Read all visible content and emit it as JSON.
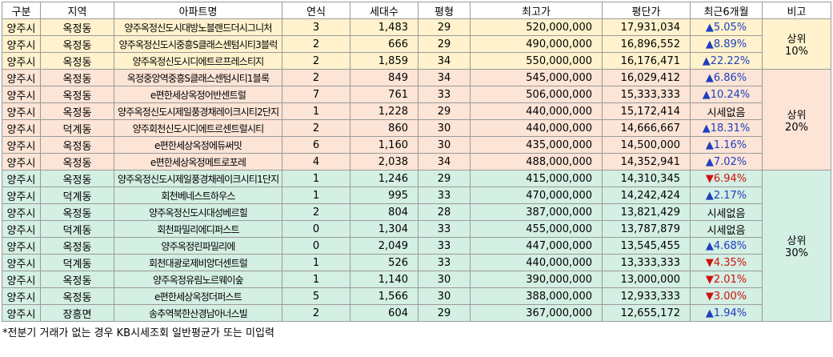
{
  "table": {
    "headers": [
      "구분",
      "지역",
      "아파트명",
      "연식",
      "세대수",
      "평형",
      "최고가",
      "평단가",
      "최근6개월",
      "비고"
    ],
    "rows": [
      [
        "양주시",
        "옥정동",
        "양주옥정신도시대방노블랜드더시그니처",
        "3",
        "1,483",
        "29",
        "520,000,000",
        "17,931,034",
        "▲5.05%"
      ],
      [
        "양주시",
        "옥정동",
        "양주옥정신도시중흥S클래스센텀시티3블럭",
        "2",
        "666",
        "29",
        "490,000,000",
        "16,896,552",
        "▲8.89%"
      ],
      [
        "양주시",
        "옥정동",
        "양주옥정신도시디에트르프레스티지",
        "2",
        "1,859",
        "34",
        "550,000,000",
        "16,176,471",
        "▲22.22%"
      ],
      [
        "양주시",
        "옥정동",
        "옥정중앙역중흥S클래스센텀시티1블록",
        "2",
        "849",
        "34",
        "545,000,000",
        "16,029,412",
        "▲6.86%"
      ],
      [
        "양주시",
        "옥정동",
        "e편한세상옥정어반센트럴",
        "7",
        "761",
        "33",
        "506,000,000",
        "15,333,333",
        "▲10.24%"
      ],
      [
        "양주시",
        "옥정동",
        "양주옥정신도시제일풍경채레이크시티2단지",
        "1",
        "1,228",
        "29",
        "440,000,000",
        "15,172,414",
        "시세없음"
      ],
      [
        "양주시",
        "덕계동",
        "양주회천신도시디에트르센트럴시티",
        "2",
        "860",
        "30",
        "440,000,000",
        "14,666,667",
        "▲18.31%"
      ],
      [
        "양주시",
        "옥정동",
        "e편한세상옥정에듀써밋",
        "6",
        "1,160",
        "30",
        "435,000,000",
        "14,500,000",
        "▲1.16%"
      ],
      [
        "양주시",
        "옥정동",
        "e편한세상옥정메트로포레",
        "4",
        "2,038",
        "34",
        "488,000,000",
        "14,352,941",
        "▲7.02%"
      ],
      [
        "양주시",
        "옥정동",
        "양주옥정신도시제일풍경채레이크시티1단지",
        "1",
        "1,246",
        "29",
        "415,000,000",
        "14,310,345",
        "▼6.94%"
      ],
      [
        "양주시",
        "덕계동",
        "회천베네스트하우스",
        "1",
        "995",
        "33",
        "470,000,000",
        "14,242,424",
        "▲2.17%"
      ],
      [
        "양주시",
        "옥정동",
        "양주옥정신도시대성베르힐",
        "2",
        "804",
        "28",
        "387,000,000",
        "13,821,429",
        "시세없음"
      ],
      [
        "양주시",
        "덕계동",
        "회천파밀리에디퍼스트",
        "0",
        "1,304",
        "33",
        "455,000,000",
        "13,787,879",
        "시세없음"
      ],
      [
        "양주시",
        "옥정동",
        "양주옥정린파밀리에",
        "0",
        "2,049",
        "33",
        "447,000,000",
        "13,545,455",
        "▲4.68%"
      ],
      [
        "양주시",
        "덕계동",
        "회천대광로제비앙더센트럴",
        "1",
        "526",
        "33",
        "440,000,000",
        "13,333,333",
        "▼4.35%"
      ],
      [
        "양주시",
        "옥정동",
        "양주옥정유림노르웨이숲",
        "1",
        "1,140",
        "30",
        "390,000,000",
        "13,000,000",
        "▼2.01%"
      ],
      [
        "양주시",
        "옥정동",
        "e편한세상옥정더퍼스트",
        "5",
        "1,566",
        "30",
        "388,000,000",
        "12,933,333",
        "▼3.00%"
      ],
      [
        "양주시",
        "장흥면",
        "송추역북한산경남아너스빌",
        "2",
        "604",
        "29",
        "367,000,000",
        "12,655,172",
        "▲1.94%"
      ]
    ],
    "groups": [
      {
        "lines": [
          "상위",
          "10%"
        ],
        "rows": 3,
        "color": "#fff2cc"
      },
      {
        "lines": [
          "상위",
          "20%"
        ],
        "rows": 6,
        "color": "#fce4d6"
      },
      {
        "lines": [
          "상위",
          "30%"
        ],
        "rows": 9,
        "color": "#d4efe3"
      }
    ]
  },
  "note": "*전분기 거래가 없는 경우 KB시세조회 일반평균가 또는 미입력"
}
